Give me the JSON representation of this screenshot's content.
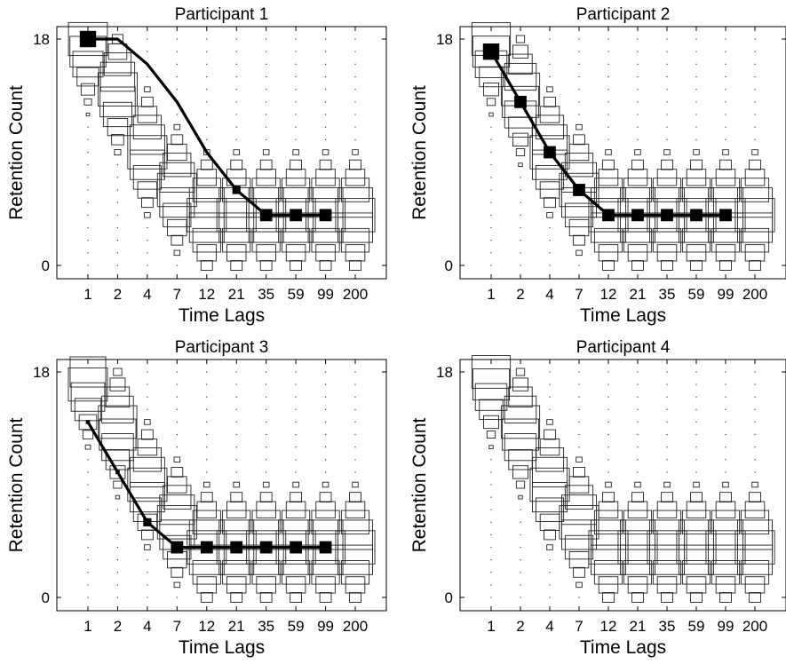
{
  "chart_data": [
    {
      "type": "scatter",
      "title": "Participant 1",
      "xlabel": "Time Lags",
      "ylabel": "Retention Count",
      "x_categories": [
        "1",
        "2",
        "4",
        "7",
        "12",
        "21",
        "35",
        "59",
        "99",
        "200"
      ],
      "ylim": [
        0,
        18
      ],
      "yticks": [
        "0",
        "18"
      ],
      "posterior_center": [
        17.7,
        13.9,
        9,
        6,
        4,
        4,
        4,
        4,
        4,
        4
      ],
      "posterior_max_size": [
        5,
        5,
        5,
        5,
        5,
        5,
        5,
        5,
        5,
        5
      ],
      "series": [
        {
          "values": [
            18,
            18,
            16,
            13,
            9,
            6,
            4,
            4,
            4,
            null
          ],
          "marker_sizes": [
            4,
            0,
            0,
            0,
            0,
            2,
            3,
            3,
            3,
            0
          ]
        }
      ]
    },
    {
      "type": "scatter",
      "title": "Participant 2",
      "xlabel": "Time Lags",
      "ylabel": "Retention Count",
      "x_categories": [
        "1",
        "2",
        "4",
        "7",
        "12",
        "21",
        "35",
        "59",
        "99",
        "200"
      ],
      "ylim": [
        0,
        18
      ],
      "yticks": [
        "0",
        "18"
      ],
      "posterior_center": [
        17.5,
        13.5,
        9,
        6,
        4,
        4,
        4,
        4,
        4,
        4
      ],
      "posterior_max_size": [
        5,
        5,
        5,
        5,
        5,
        5,
        5,
        5,
        5,
        5
      ],
      "series": [
        {
          "values": [
            17,
            13,
            9,
            6,
            4,
            4,
            4,
            4,
            4,
            null
          ],
          "marker_sizes": [
            4,
            3,
            3,
            3,
            3,
            3,
            3,
            3,
            3,
            0
          ]
        }
      ]
    },
    {
      "type": "scatter",
      "title": "Participant 3",
      "xlabel": "Time Lags",
      "ylabel": "Retention Count",
      "x_categories": [
        "1",
        "2",
        "4",
        "7",
        "12",
        "21",
        "35",
        "59",
        "99",
        "200"
      ],
      "ylim": [
        0,
        18
      ],
      "yticks": [
        "0",
        "18"
      ],
      "posterior_center": [
        17.2,
        13.5,
        9,
        6,
        4,
        4,
        4,
        4,
        4,
        4
      ],
      "posterior_max_size": [
        5,
        5,
        5,
        5,
        5,
        5,
        5,
        5,
        5,
        5
      ],
      "series": [
        {
          "values": [
            14,
            10,
            6,
            4,
            4,
            4,
            4,
            4,
            4,
            null
          ],
          "marker_sizes": [
            1,
            1,
            2,
            3,
            3,
            3,
            3,
            3,
            3,
            0
          ]
        }
      ]
    },
    {
      "type": "scatter",
      "title": "Participant 4",
      "xlabel": "Time Lags",
      "ylabel": "Retention Count",
      "x_categories": [
        "1",
        "2",
        "4",
        "7",
        "12",
        "21",
        "35",
        "59",
        "99",
        "200"
      ],
      "ylim": [
        0,
        18
      ],
      "yticks": [
        "0",
        "18"
      ],
      "posterior_center": [
        17.5,
        13.5,
        9,
        6,
        4,
        4,
        4,
        4,
        4,
        4
      ],
      "posterior_max_size": [
        5,
        5,
        5,
        5,
        5,
        5,
        5,
        5,
        5,
        5
      ],
      "series": []
    }
  ]
}
